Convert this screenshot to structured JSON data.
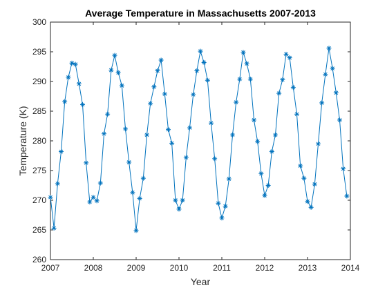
{
  "chart_data": {
    "type": "line",
    "title": "Average Temperature in Massachusetts 2007-2013",
    "xlabel": "Year",
    "ylabel": "Temperature (K)",
    "xlim": [
      2007,
      2014
    ],
    "ylim": [
      260,
      300
    ],
    "xticks": [
      "2007",
      "2008",
      "2009",
      "2010",
      "2011",
      "2012",
      "2013",
      "2014"
    ],
    "yticks": [
      "260",
      "265",
      "270",
      "275",
      "280",
      "285",
      "290",
      "295",
      "300"
    ],
    "grid": false,
    "legend": "none",
    "marker": "asterisk",
    "color": "#0072BD",
    "series": [
      {
        "x": [
          2007.0,
          2007.083,
          2007.167,
          2007.25,
          2007.333,
          2007.417,
          2007.5,
          2007.583,
          2007.667,
          2007.75,
          2007.833,
          2007.917,
          2008.0,
          2008.083,
          2008.167,
          2008.25,
          2008.333,
          2008.417,
          2008.5,
          2008.583,
          2008.667,
          2008.75,
          2008.833,
          2008.917,
          2009.0,
          2009.083,
          2009.167,
          2009.25,
          2009.333,
          2009.417,
          2009.5,
          2009.583,
          2009.667,
          2009.75,
          2009.833,
          2009.917,
          2010.0,
          2010.083,
          2010.167,
          2010.25,
          2010.333,
          2010.417,
          2010.5,
          2010.583,
          2010.667,
          2010.75,
          2010.833,
          2010.917,
          2011.0,
          2011.083,
          2011.167,
          2011.25,
          2011.333,
          2011.417,
          2011.5,
          2011.583,
          2011.667,
          2011.75,
          2011.833,
          2011.917,
          2012.0,
          2012.083,
          2012.167,
          2012.25,
          2012.333,
          2012.417,
          2012.5,
          2012.583,
          2012.667,
          2012.75,
          2012.833,
          2012.917,
          2013.0,
          2013.083,
          2013.167,
          2013.25,
          2013.333,
          2013.417,
          2013.5,
          2013.583,
          2013.667,
          2013.75,
          2013.833,
          2013.917
        ],
        "y": [
          270.5,
          265.3,
          272.8,
          278.2,
          286.6,
          290.7,
          293.1,
          292.9,
          289.6,
          286.1,
          276.3,
          269.7,
          270.5,
          269.9,
          272.9,
          281.2,
          284.5,
          291.9,
          294.4,
          291.5,
          289.3,
          282.0,
          276.4,
          271.3,
          264.9,
          270.3,
          273.7,
          281.0,
          286.3,
          289.1,
          291.8,
          293.6,
          287.9,
          281.9,
          279.6,
          270.0,
          268.5,
          270.0,
          277.2,
          282.2,
          287.8,
          291.8,
          295.1,
          293.2,
          290.2,
          283.0,
          277.0,
          269.5,
          267.0,
          269.0,
          273.6,
          281.0,
          286.5,
          290.4,
          294.9,
          293.0,
          290.4,
          283.5,
          279.9,
          274.5,
          270.8,
          272.5,
          278.2,
          281.0,
          288.0,
          290.3,
          294.6,
          294.0,
          289.0,
          284.5,
          275.8,
          273.7,
          269.8,
          268.8,
          272.7,
          279.5,
          286.4,
          291.2,
          295.6,
          292.2,
          288.1,
          283.5,
          275.3,
          270.7
        ]
      }
    ]
  }
}
